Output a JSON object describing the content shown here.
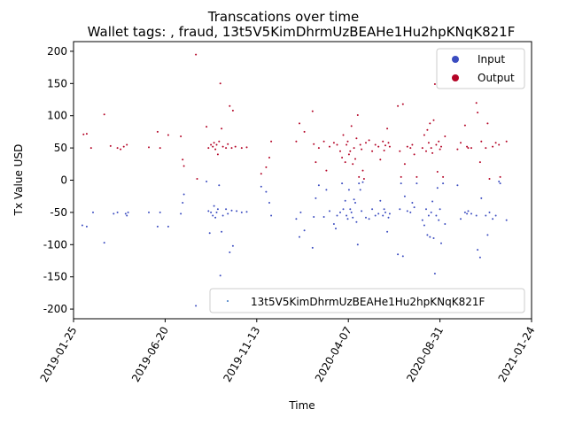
{
  "chart_data": {
    "type": "scatter",
    "title": "Transcations over time",
    "subtitle": "Wallet tags: , fraud, 13t5V5KimDhrmUzBEAHe1Hu2hpKNqK821F",
    "xlabel": "Time",
    "ylabel": "Tx Value USD",
    "xlim": [
      "2019-01-25",
      "2021-01-24"
    ],
    "ylim": [
      -215,
      215
    ],
    "xticks": [
      "2019-01-25",
      "2019-06-20",
      "2019-11-13",
      "2020-04-07",
      "2020-08-31",
      "2021-01-24"
    ],
    "yticks": [
      -200,
      -150,
      -100,
      -50,
      0,
      50,
      100,
      150,
      200
    ],
    "grid": false,
    "legend_top": {
      "placement": "upper right",
      "entries": [
        {
          "label": "Input",
          "color": "#3b4cc0"
        },
        {
          "label": "Output",
          "color": "#b40426"
        }
      ]
    },
    "legend_bottom": {
      "placement": "lower right",
      "entries": [
        {
          "label": "13t5V5KimDhrmUzBEAHe1Hu2hpKNqK821F",
          "color": "#3b78c4"
        }
      ]
    },
    "series": [
      {
        "name": "Output",
        "color": "#b40426",
        "points": [
          [
            "2019-02-10",
            71
          ],
          [
            "2019-02-15",
            72
          ],
          [
            "2019-02-22",
            50
          ],
          [
            "2019-03-15",
            102
          ],
          [
            "2019-03-25",
            53
          ],
          [
            "2019-04-05",
            50
          ],
          [
            "2019-04-10",
            48
          ],
          [
            "2019-04-15",
            52
          ],
          [
            "2019-04-20",
            55
          ],
          [
            "2019-05-25",
            51
          ],
          [
            "2019-06-08",
            75
          ],
          [
            "2019-06-12",
            50
          ],
          [
            "2019-06-25",
            70
          ],
          [
            "2019-07-15",
            68
          ],
          [
            "2019-07-18",
            32
          ],
          [
            "2019-07-20",
            22
          ],
          [
            "2019-08-08",
            195
          ],
          [
            "2019-08-10",
            2
          ],
          [
            "2019-08-25",
            83
          ],
          [
            "2019-08-28",
            50
          ],
          [
            "2019-09-01",
            55
          ],
          [
            "2019-09-04",
            52
          ],
          [
            "2019-09-06",
            58
          ],
          [
            "2019-09-08",
            48
          ],
          [
            "2019-09-10",
            55
          ],
          [
            "2019-09-12",
            40
          ],
          [
            "2019-09-14",
            60
          ],
          [
            "2019-09-16",
            150
          ],
          [
            "2019-09-18",
            80
          ],
          [
            "2019-09-20",
            52
          ],
          [
            "2019-09-25",
            50
          ],
          [
            "2019-09-28",
            56
          ],
          [
            "2019-10-01",
            115
          ],
          [
            "2019-10-04",
            50
          ],
          [
            "2019-10-06",
            108
          ],
          [
            "2019-10-10",
            52
          ],
          [
            "2019-10-20",
            50
          ],
          [
            "2019-10-28",
            51
          ],
          [
            "2019-11-20",
            10
          ],
          [
            "2019-11-28",
            20
          ],
          [
            "2019-12-03",
            35
          ],
          [
            "2019-12-06",
            60
          ],
          [
            "2020-01-15",
            60
          ],
          [
            "2020-01-20",
            88
          ],
          [
            "2020-01-28",
            75
          ],
          [
            "2020-02-10",
            107
          ],
          [
            "2020-02-12",
            56
          ],
          [
            "2020-02-15",
            28
          ],
          [
            "2020-02-20",
            50
          ],
          [
            "2020-02-28",
            60
          ],
          [
            "2020-03-03",
            15
          ],
          [
            "2020-03-08",
            52
          ],
          [
            "2020-03-15",
            58
          ],
          [
            "2020-03-20",
            55
          ],
          [
            "2020-03-25",
            45
          ],
          [
            "2020-03-28",
            35
          ],
          [
            "2020-03-30",
            70
          ],
          [
            "2020-04-02",
            28
          ],
          [
            "2020-04-04",
            55
          ],
          [
            "2020-04-06",
            60
          ],
          [
            "2020-04-08",
            40
          ],
          [
            "2020-04-10",
            45
          ],
          [
            "2020-04-12",
            84
          ],
          [
            "2020-04-14",
            25
          ],
          [
            "2020-04-16",
            50
          ],
          [
            "2020-04-18",
            33
          ],
          [
            "2020-04-20",
            65
          ],
          [
            "2020-04-22",
            101
          ],
          [
            "2020-04-24",
            5
          ],
          [
            "2020-04-26",
            55
          ],
          [
            "2020-04-28",
            48
          ],
          [
            "2020-04-30",
            15
          ],
          [
            "2020-05-02",
            2
          ],
          [
            "2020-05-05",
            58
          ],
          [
            "2020-05-10",
            62
          ],
          [
            "2020-05-15",
            45
          ],
          [
            "2020-05-20",
            55
          ],
          [
            "2020-05-25",
            52
          ],
          [
            "2020-05-28",
            32
          ],
          [
            "2020-06-01",
            60
          ],
          [
            "2020-06-03",
            46
          ],
          [
            "2020-06-05",
            54
          ],
          [
            "2020-06-08",
            80
          ],
          [
            "2020-06-10",
            58
          ],
          [
            "2020-06-12",
            52
          ],
          [
            "2020-06-25",
            115
          ],
          [
            "2020-06-28",
            45
          ],
          [
            "2020-06-30",
            5
          ],
          [
            "2020-07-03",
            118
          ],
          [
            "2020-07-06",
            25
          ],
          [
            "2020-07-10",
            52
          ],
          [
            "2020-07-15",
            50
          ],
          [
            "2020-07-18",
            55
          ],
          [
            "2020-07-21",
            40
          ],
          [
            "2020-07-25",
            5
          ],
          [
            "2020-08-03",
            50
          ],
          [
            "2020-08-06",
            70
          ],
          [
            "2020-08-09",
            45
          ],
          [
            "2020-08-11",
            78
          ],
          [
            "2020-08-13",
            58
          ],
          [
            "2020-08-15",
            88
          ],
          [
            "2020-08-17",
            50
          ],
          [
            "2020-08-19",
            42
          ],
          [
            "2020-08-21",
            93
          ],
          [
            "2020-08-23",
            149
          ],
          [
            "2020-08-25",
            55
          ],
          [
            "2020-08-27",
            13
          ],
          [
            "2020-08-29",
            60
          ],
          [
            "2020-08-31",
            48
          ],
          [
            "2020-09-02",
            52
          ],
          [
            "2020-09-05",
            5
          ],
          [
            "2020-09-08",
            68
          ],
          [
            "2020-09-28",
            48
          ],
          [
            "2020-10-03",
            58
          ],
          [
            "2020-10-10",
            85
          ],
          [
            "2020-10-13",
            52
          ],
          [
            "2020-10-15",
            50
          ],
          [
            "2020-10-20",
            50
          ],
          [
            "2020-10-28",
            120
          ],
          [
            "2020-10-30",
            105
          ],
          [
            "2020-11-03",
            28
          ],
          [
            "2020-11-05",
            60
          ],
          [
            "2020-11-12",
            50
          ],
          [
            "2020-11-15",
            88
          ],
          [
            "2020-11-18",
            2
          ],
          [
            "2020-11-23",
            52
          ],
          [
            "2020-11-28",
            58
          ],
          [
            "2020-12-03",
            55
          ],
          [
            "2020-12-05",
            5
          ],
          [
            "2020-12-15",
            60
          ]
        ]
      },
      {
        "name": "Input",
        "color": "#3b4cc0",
        "points": [
          [
            "2019-02-08",
            -70
          ],
          [
            "2019-02-15",
            -72
          ],
          [
            "2019-02-25",
            -50
          ],
          [
            "2019-03-15",
            -97
          ],
          [
            "2019-03-30",
            -52
          ],
          [
            "2019-04-05",
            -50
          ],
          [
            "2019-04-18",
            -52
          ],
          [
            "2019-04-20",
            -55
          ],
          [
            "2019-04-22",
            -50
          ],
          [
            "2019-05-25",
            -50
          ],
          [
            "2019-06-08",
            -72
          ],
          [
            "2019-06-12",
            -50
          ],
          [
            "2019-06-25",
            -72
          ],
          [
            "2019-07-15",
            -52
          ],
          [
            "2019-07-18",
            -35
          ],
          [
            "2019-07-20",
            -22
          ],
          [
            "2019-08-08",
            -195
          ],
          [
            "2019-08-25",
            -2
          ],
          [
            "2019-08-28",
            -48
          ],
          [
            "2019-08-30",
            -82
          ],
          [
            "2019-09-01",
            -50
          ],
          [
            "2019-09-04",
            -55
          ],
          [
            "2019-09-06",
            -40
          ],
          [
            "2019-09-08",
            -58
          ],
          [
            "2019-09-10",
            -50
          ],
          [
            "2019-09-12",
            -45
          ],
          [
            "2019-09-14",
            -8
          ],
          [
            "2019-09-16",
            -148
          ],
          [
            "2019-09-18",
            -80
          ],
          [
            "2019-09-20",
            -55
          ],
          [
            "2019-09-25",
            -45
          ],
          [
            "2019-09-28",
            -52
          ],
          [
            "2019-10-01",
            -112
          ],
          [
            "2019-10-04",
            -47
          ],
          [
            "2019-10-06",
            -102
          ],
          [
            "2019-10-12",
            -48
          ],
          [
            "2019-10-20",
            -50
          ],
          [
            "2019-10-28",
            -49
          ],
          [
            "2019-11-20",
            -10
          ],
          [
            "2019-11-28",
            -18
          ],
          [
            "2019-12-03",
            -35
          ],
          [
            "2019-12-06",
            -55
          ],
          [
            "2020-01-15",
            -60
          ],
          [
            "2020-01-20",
            -88
          ],
          [
            "2020-01-22",
            -50
          ],
          [
            "2020-01-28",
            -78
          ],
          [
            "2020-02-10",
            -105
          ],
          [
            "2020-02-12",
            -57
          ],
          [
            "2020-02-15",
            -28
          ],
          [
            "2020-02-20",
            -8
          ],
          [
            "2020-02-28",
            -57
          ],
          [
            "2020-03-03",
            -15
          ],
          [
            "2020-03-08",
            -48
          ],
          [
            "2020-03-15",
            -68
          ],
          [
            "2020-03-18",
            -75
          ],
          [
            "2020-03-20",
            -55
          ],
          [
            "2020-03-25",
            -50
          ],
          [
            "2020-03-28",
            -5
          ],
          [
            "2020-03-30",
            -45
          ],
          [
            "2020-04-02",
            -32
          ],
          [
            "2020-04-04",
            -55
          ],
          [
            "2020-04-06",
            -60
          ],
          [
            "2020-04-08",
            -15
          ],
          [
            "2020-04-10",
            -45
          ],
          [
            "2020-04-12",
            -50
          ],
          [
            "2020-04-14",
            -58
          ],
          [
            "2020-04-16",
            -30
          ],
          [
            "2020-04-18",
            -35
          ],
          [
            "2020-04-20",
            -65
          ],
          [
            "2020-04-22",
            -100
          ],
          [
            "2020-04-24",
            -5
          ],
          [
            "2020-04-26",
            -15
          ],
          [
            "2020-04-28",
            -48
          ],
          [
            "2020-04-30",
            -3
          ],
          [
            "2020-05-05",
            -58
          ],
          [
            "2020-05-10",
            -60
          ],
          [
            "2020-05-15",
            -45
          ],
          [
            "2020-05-20",
            -55
          ],
          [
            "2020-05-25",
            -52
          ],
          [
            "2020-05-28",
            -32
          ],
          [
            "2020-06-01",
            -55
          ],
          [
            "2020-06-03",
            -45
          ],
          [
            "2020-06-05",
            -50
          ],
          [
            "2020-06-08",
            -80
          ],
          [
            "2020-06-10",
            -58
          ],
          [
            "2020-06-12",
            -52
          ],
          [
            "2020-06-25",
            -115
          ],
          [
            "2020-06-28",
            -45
          ],
          [
            "2020-06-30",
            -5
          ],
          [
            "2020-07-03",
            -118
          ],
          [
            "2020-07-06",
            -25
          ],
          [
            "2020-07-10",
            -48
          ],
          [
            "2020-07-15",
            -50
          ],
          [
            "2020-07-18",
            -35
          ],
          [
            "2020-07-21",
            -42
          ],
          [
            "2020-07-25",
            -5
          ],
          [
            "2020-08-03",
            -62
          ],
          [
            "2020-08-06",
            -70
          ],
          [
            "2020-08-09",
            -45
          ],
          [
            "2020-08-11",
            -85
          ],
          [
            "2020-08-13",
            -55
          ],
          [
            "2020-08-15",
            -88
          ],
          [
            "2020-08-17",
            -50
          ],
          [
            "2020-08-19",
            -33
          ],
          [
            "2020-08-21",
            -90
          ],
          [
            "2020-08-23",
            -145
          ],
          [
            "2020-08-25",
            -55
          ],
          [
            "2020-08-27",
            -12
          ],
          [
            "2020-08-29",
            -62
          ],
          [
            "2020-08-31",
            -45
          ],
          [
            "2020-09-02",
            -98
          ],
          [
            "2020-09-05",
            -5
          ],
          [
            "2020-09-08",
            -68
          ],
          [
            "2020-09-28",
            -8
          ],
          [
            "2020-10-03",
            -60
          ],
          [
            "2020-10-10",
            -50
          ],
          [
            "2020-10-13",
            -52
          ],
          [
            "2020-10-15",
            -48
          ],
          [
            "2020-10-20",
            -52
          ],
          [
            "2020-10-28",
            -55
          ],
          [
            "2020-10-30",
            -108
          ],
          [
            "2020-11-03",
            -120
          ],
          [
            "2020-11-05",
            -28
          ],
          [
            "2020-11-12",
            -55
          ],
          [
            "2020-11-15",
            -85
          ],
          [
            "2020-11-18",
            -50
          ],
          [
            "2020-11-23",
            -60
          ],
          [
            "2020-11-28",
            -55
          ],
          [
            "2020-12-03",
            -2
          ],
          [
            "2020-12-05",
            -5
          ],
          [
            "2020-12-15",
            -62
          ]
        ]
      }
    ]
  }
}
